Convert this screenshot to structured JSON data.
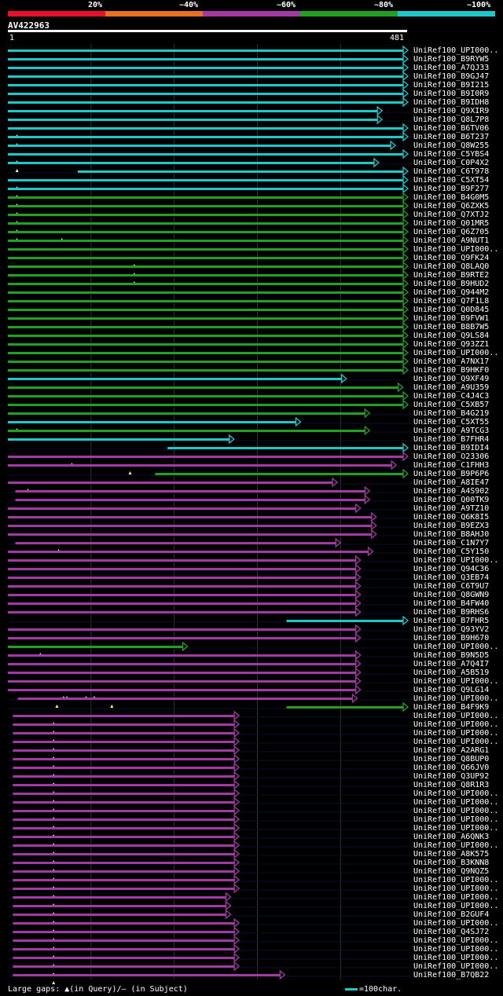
{
  "header": {
    "percent_labels": [
      "20%",
      "~40%",
      "~60%",
      "~80%",
      "~100%"
    ],
    "color_legend": [
      {
        "label": "20%",
        "color": "#e8102a"
      },
      {
        "label": "~40%",
        "color": "#e8701e"
      },
      {
        "label": "~60%",
        "color": "#a23aa2"
      },
      {
        "label": "~80%",
        "color": "#22a022"
      },
      {
        "label": "~100%",
        "color": "#1ec8c8"
      }
    ],
    "query_id": "AV422963",
    "ruler_start": "1",
    "ruler_end": "481"
  },
  "colors": {
    "cyan": "#1ec8c8",
    "green": "#22a022",
    "purple": "#a23aa2",
    "grid": "#333333",
    "gap_marker": "#ffff80"
  },
  "query_length": 481,
  "hits": [
    {
      "id": "UniRef100_UPI000..",
      "start": 1,
      "end": 481,
      "color": "cyan"
    },
    {
      "id": "UniRef100_B9RYW5",
      "start": 1,
      "end": 481,
      "color": "cyan"
    },
    {
      "id": "UniRef100_A7QJ33",
      "start": 1,
      "end": 481,
      "color": "cyan"
    },
    {
      "id": "UniRef100_B9GJ47",
      "start": 1,
      "end": 481,
      "color": "cyan"
    },
    {
      "id": "UniRef100_B9I215",
      "start": 1,
      "end": 481,
      "color": "cyan"
    },
    {
      "id": "UniRef100_B9I0R9",
      "start": 1,
      "end": 481,
      "color": "cyan"
    },
    {
      "id": "UniRef100_B9IDH8",
      "start": 1,
      "end": 481,
      "color": "cyan"
    },
    {
      "id": "UniRef100_Q9XIR9",
      "start": 1,
      "end": 450,
      "color": "cyan"
    },
    {
      "id": "UniRef100_Q8L7P8",
      "start": 1,
      "end": 450,
      "color": "cyan"
    },
    {
      "id": "UniRef100_B6TV06",
      "start": 1,
      "end": 481,
      "color": "cyan",
      "gaps": [
        12
      ]
    },
    {
      "id": "UniRef100_B6T237",
      "start": 1,
      "end": 481,
      "color": "cyan",
      "gaps": [
        12
      ]
    },
    {
      "id": "UniRef100_Q8W255",
      "start": 1,
      "end": 466,
      "color": "cyan"
    },
    {
      "id": "UniRef100_C5YBS4",
      "start": 1,
      "end": 481,
      "color": "cyan",
      "gaps": [
        12
      ]
    },
    {
      "id": "UniRef100_C0P4X2",
      "start": 1,
      "end": 446,
      "color": "cyan",
      "gaps": [
        12
      ]
    },
    {
      "id": "UniRef100_C6T978",
      "start": 85,
      "end": 481,
      "color": "cyan"
    },
    {
      "id": "UniRef100_C5XT54",
      "start": 1,
      "end": 481,
      "color": "cyan",
      "gaps": [
        12
      ]
    },
    {
      "id": "UniRef100_B9F277",
      "start": 1,
      "end": 481,
      "color": "cyan",
      "gaps": [
        12
      ]
    },
    {
      "id": "UniRef100_B4G0M5",
      "start": 1,
      "end": 481,
      "color": "green",
      "gaps": [
        12
      ]
    },
    {
      "id": "UniRef100_Q6ZXK5",
      "start": 1,
      "end": 481,
      "color": "green",
      "gaps": [
        12
      ]
    },
    {
      "id": "UniRef100_Q7XTJ2",
      "start": 1,
      "end": 481,
      "color": "green",
      "gaps": [
        12
      ]
    },
    {
      "id": "UniRef100_Q01MR5",
      "start": 1,
      "end": 481,
      "color": "green",
      "gaps": [
        12
      ]
    },
    {
      "id": "UniRef100_Q6Z705",
      "start": 1,
      "end": 481,
      "color": "green",
      "gaps": [
        12,
        66
      ]
    },
    {
      "id": "UniRef100_A9NUT1",
      "start": 1,
      "end": 481,
      "color": "green"
    },
    {
      "id": "UniRef100_UPI000..",
      "start": 1,
      "end": 481,
      "color": "green"
    },
    {
      "id": "UniRef100_Q9FK24",
      "start": 1,
      "end": 481,
      "color": "green",
      "gaps": [
        153
      ]
    },
    {
      "id": "UniRef100_Q8LAQ0",
      "start": 1,
      "end": 481,
      "color": "green",
      "gaps": [
        153
      ]
    },
    {
      "id": "UniRef100_B9RTE2",
      "start": 1,
      "end": 481,
      "color": "green",
      "gaps": [
        153
      ]
    },
    {
      "id": "UniRef100_B9HUD2",
      "start": 1,
      "end": 481,
      "color": "green"
    },
    {
      "id": "UniRef100_Q944M2",
      "start": 1,
      "end": 481,
      "color": "green"
    },
    {
      "id": "UniRef100_Q7F1L8",
      "start": 1,
      "end": 481,
      "color": "green"
    },
    {
      "id": "UniRef100_Q0D845",
      "start": 1,
      "end": 481,
      "color": "green"
    },
    {
      "id": "UniRef100_B9FVW1",
      "start": 1,
      "end": 481,
      "color": "green"
    },
    {
      "id": "UniRef100_B8B7W5",
      "start": 1,
      "end": 481,
      "color": "green"
    },
    {
      "id": "UniRef100_Q9LS84",
      "start": 1,
      "end": 481,
      "color": "green"
    },
    {
      "id": "UniRef100_Q93ZZ1",
      "start": 1,
      "end": 481,
      "color": "green"
    },
    {
      "id": "UniRef100_UPI000..",
      "start": 1,
      "end": 481,
      "color": "green"
    },
    {
      "id": "UniRef100_A7NX17",
      "start": 1,
      "end": 481,
      "color": "green"
    },
    {
      "id": "UniRef100_B9HKF0",
      "start": 1,
      "end": 481,
      "color": "green"
    },
    {
      "id": "UniRef100_Q9XF49",
      "start": 1,
      "end": 407,
      "color": "cyan"
    },
    {
      "id": "UniRef100_A9U359",
      "start": 1,
      "end": 475,
      "color": "green"
    },
    {
      "id": "UniRef100_C4J4C3",
      "start": 1,
      "end": 481,
      "color": "green"
    },
    {
      "id": "UniRef100_C5XB57",
      "start": 1,
      "end": 481,
      "color": "green"
    },
    {
      "id": "UniRef100_B4G219",
      "start": 1,
      "end": 435,
      "color": "green"
    },
    {
      "id": "UniRef100_C5XT55",
      "start": 1,
      "end": 352,
      "color": "cyan",
      "gaps": [
        12
      ]
    },
    {
      "id": "UniRef100_A9TCG3",
      "start": 1,
      "end": 435,
      "color": "green"
    },
    {
      "id": "UniRef100_B7FHR4",
      "start": 1,
      "end": 272,
      "color": "cyan"
    },
    {
      "id": "UniRef100_B9IDI4",
      "start": 193,
      "end": 481,
      "color": "cyan"
    },
    {
      "id": "UniRef100_O23306",
      "start": 1,
      "end": 481,
      "color": "purple",
      "gaps": [
        78
      ]
    },
    {
      "id": "UniRef100_C1FHH3",
      "start": 1,
      "end": 467,
      "color": "purple",
      "gaps": [
        148
      ]
    },
    {
      "id": "UniRef100_B9P6P6",
      "start": 178,
      "end": 481,
      "color": "green"
    },
    {
      "id": "UniRef100_A8IE47",
      "start": 1,
      "end": 396,
      "color": "purple",
      "gaps": [
        25
      ]
    },
    {
      "id": "UniRef100_A4S902",
      "start": 10,
      "end": 435,
      "color": "purple"
    },
    {
      "id": "UniRef100_Q00TK9",
      "start": 10,
      "end": 435,
      "color": "purple"
    },
    {
      "id": "UniRef100_A9TZ10",
      "start": 1,
      "end": 424,
      "color": "purple"
    },
    {
      "id": "UniRef100_Q6K8I5",
      "start": 1,
      "end": 443,
      "color": "purple"
    },
    {
      "id": "UniRef100_B9EZX3",
      "start": 1,
      "end": 443,
      "color": "purple"
    },
    {
      "id": "UniRef100_B8AHJ0",
      "start": 1,
      "end": 443,
      "color": "purple"
    },
    {
      "id": "UniRef100_C1N7Y7",
      "start": 10,
      "end": 400,
      "color": "purple",
      "gaps": [
        62
      ]
    },
    {
      "id": "UniRef100_C5Y150",
      "start": 1,
      "end": 439,
      "color": "purple"
    },
    {
      "id": "UniRef100_UPI000..",
      "start": 1,
      "end": 424,
      "color": "purple"
    },
    {
      "id": "UniRef100_Q94C36",
      "start": 1,
      "end": 424,
      "color": "purple"
    },
    {
      "id": "UniRef100_Q3EB74",
      "start": 1,
      "end": 424,
      "color": "purple"
    },
    {
      "id": "UniRef100_C6T9U7",
      "start": 1,
      "end": 424,
      "color": "purple"
    },
    {
      "id": "UniRef100_Q8GWN9",
      "start": 1,
      "end": 424,
      "color": "purple"
    },
    {
      "id": "UniRef100_B4FW40",
      "start": 1,
      "end": 424,
      "color": "purple"
    },
    {
      "id": "UniRef100_B9RHS6",
      "start": 1,
      "end": 424,
      "color": "purple"
    },
    {
      "id": "UniRef100_B7FHR5",
      "start": 336,
      "end": 481,
      "color": "cyan"
    },
    {
      "id": "UniRef100_Q93YV2",
      "start": 1,
      "end": 424,
      "color": "purple"
    },
    {
      "id": "UniRef100_B9H670",
      "start": 1,
      "end": 424,
      "color": "purple"
    },
    {
      "id": "UniRef100_UPI000..",
      "start": 1,
      "end": 216,
      "color": "green",
      "gaps": [
        40
      ]
    },
    {
      "id": "UniRef100_B9N5D5",
      "start": 1,
      "end": 424,
      "color": "purple"
    },
    {
      "id": "UniRef100_A7Q4I7",
      "start": 1,
      "end": 424,
      "color": "purple"
    },
    {
      "id": "UniRef100_A5B519",
      "start": 1,
      "end": 424,
      "color": "purple"
    },
    {
      "id": "UniRef100_UPI000..",
      "start": 1,
      "end": 424,
      "color": "purple"
    },
    {
      "id": "UniRef100_Q9LG14",
      "start": 1,
      "end": 424,
      "color": "purple",
      "gaps": [
        68,
        72,
        95,
        105
      ]
    },
    {
      "id": "UniRef100_UPI000..",
      "start": 13,
      "end": 420,
      "color": "purple",
      "gaps": [
        60,
        126
      ]
    },
    {
      "id": "UniRef100_B4F9K9",
      "start": 336,
      "end": 481,
      "color": "green"
    },
    {
      "id": "UniRef100_UPI000..",
      "start": 7,
      "end": 278,
      "color": "purple",
      "gaps": [
        56
      ]
    },
    {
      "id": "UniRef100_UPI000..",
      "start": 7,
      "end": 278,
      "color": "purple",
      "gaps": [
        56
      ]
    },
    {
      "id": "UniRef100_UPI000..",
      "start": 7,
      "end": 278,
      "color": "purple",
      "gaps": [
        56
      ]
    },
    {
      "id": "UniRef100_UPI000..",
      "start": 7,
      "end": 278,
      "color": "purple",
      "gaps": [
        56
      ]
    },
    {
      "id": "UniRef100_A2ARG1",
      "start": 7,
      "end": 278,
      "color": "purple",
      "gaps": [
        56
      ]
    },
    {
      "id": "UniRef100_Q8BUP0",
      "start": 7,
      "end": 278,
      "color": "purple",
      "gaps": [
        56
      ]
    },
    {
      "id": "UniRef100_Q66JV0",
      "start": 7,
      "end": 278,
      "color": "purple",
      "gaps": [
        56
      ]
    },
    {
      "id": "UniRef100_Q3UP92",
      "start": 7,
      "end": 278,
      "color": "purple",
      "gaps": [
        56
      ]
    },
    {
      "id": "UniRef100_Q8R1R3",
      "start": 7,
      "end": 278,
      "color": "purple",
      "gaps": [
        56
      ]
    },
    {
      "id": "UniRef100_UPI000..",
      "start": 7,
      "end": 278,
      "color": "purple",
      "gaps": [
        56
      ]
    },
    {
      "id": "UniRef100_UPI000..",
      "start": 7,
      "end": 278,
      "color": "purple",
      "gaps": [
        56
      ]
    },
    {
      "id": "UniRef100_UPI000..",
      "start": 7,
      "end": 278,
      "color": "purple",
      "gaps": [
        56
      ]
    },
    {
      "id": "UniRef100_UPI000..",
      "start": 7,
      "end": 278,
      "color": "purple",
      "gaps": [
        56
      ]
    },
    {
      "id": "UniRef100_UPI000..",
      "start": 7,
      "end": 278,
      "color": "purple",
      "gaps": [
        56
      ]
    },
    {
      "id": "UniRef100_A6QNK3",
      "start": 7,
      "end": 278,
      "color": "purple",
      "gaps": [
        56
      ]
    },
    {
      "id": "UniRef100_UPI000..",
      "start": 7,
      "end": 278,
      "color": "purple",
      "gaps": [
        56
      ]
    },
    {
      "id": "UniRef100_A8K575",
      "start": 7,
      "end": 278,
      "color": "purple",
      "gaps": [
        56
      ]
    },
    {
      "id": "UniRef100_B3KNN8",
      "start": 7,
      "end": 278,
      "color": "purple",
      "gaps": [
        56
      ]
    },
    {
      "id": "UniRef100_Q9NQZ5",
      "start": 7,
      "end": 278,
      "color": "purple",
      "gaps": [
        56
      ]
    },
    {
      "id": "UniRef100_UPI000..",
      "start": 7,
      "end": 278,
      "color": "purple",
      "gaps": [
        56
      ]
    },
    {
      "id": "UniRef100_UPI000..",
      "start": 7,
      "end": 278,
      "color": "purple",
      "gaps": [
        56
      ]
    },
    {
      "id": "UniRef100_UPI000..",
      "start": 7,
      "end": 268,
      "color": "purple",
      "gaps": [
        56
      ]
    },
    {
      "id": "UniRef100_UPI000..",
      "start": 7,
      "end": 268,
      "color": "purple",
      "gaps": [
        56
      ]
    },
    {
      "id": "UniRef100_B2GUF4",
      "start": 7,
      "end": 268,
      "color": "purple",
      "gaps": [
        56
      ]
    },
    {
      "id": "UniRef100_UPI000..",
      "start": 7,
      "end": 278,
      "color": "purple",
      "gaps": [
        56
      ]
    },
    {
      "id": "UniRef100_Q4SJ72",
      "start": 7,
      "end": 278,
      "color": "purple",
      "gaps": [
        56
      ]
    },
    {
      "id": "UniRef100_UPI000..",
      "start": 7,
      "end": 278,
      "color": "purple",
      "gaps": [
        56
      ]
    },
    {
      "id": "UniRef100_UPI000..",
      "start": 7,
      "end": 278,
      "color": "purple",
      "gaps": [
        56
      ]
    },
    {
      "id": "UniRef100_UPI000..",
      "start": 7,
      "end": 278,
      "color": "purple",
      "gaps": [
        56
      ]
    },
    {
      "id": "UniRef100_UPI000..",
      "start": 7,
      "end": 278,
      "color": "purple",
      "gaps": [
        56
      ]
    },
    {
      "id": "UniRef100_B7QB22",
      "start": 7,
      "end": 333,
      "color": "purple",
      "gaps": [
        56
      ]
    }
  ],
  "footer": {
    "large_gaps_label": "Large gaps: ▲(in Query)/– (in Subject)",
    "scale_label": "=100char."
  }
}
